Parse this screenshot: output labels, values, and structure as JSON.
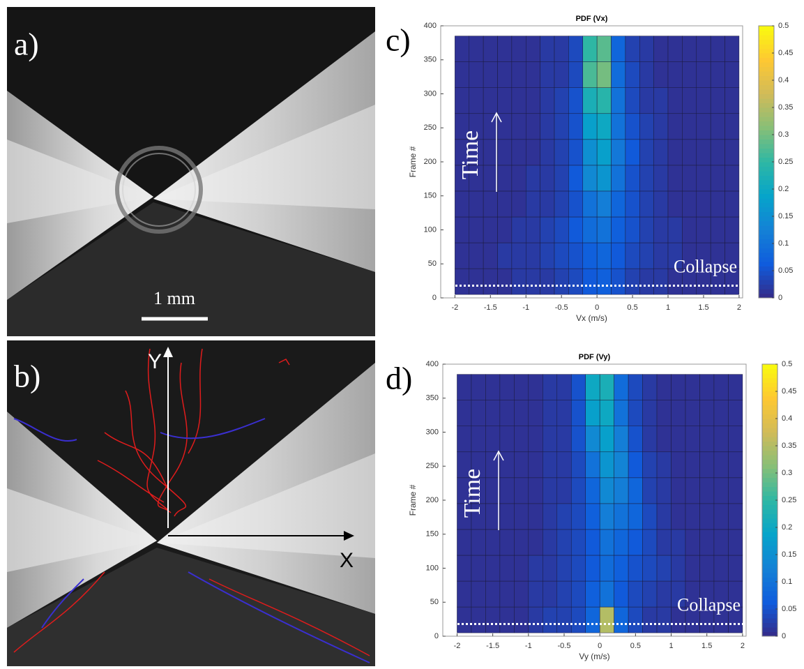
{
  "panels": {
    "a": {
      "label": "a)",
      "scale_bar": "1 mm"
    },
    "b": {
      "label": "b)",
      "y_axis": "Y",
      "x_axis": "X"
    }
  },
  "chart_data": [
    {
      "type": "heatmap",
      "panel_label": "c)",
      "title": "PDF (Vx)",
      "xlabel": "Vx (m/s)",
      "ylabel": "Frame #",
      "time_label": "Time",
      "collapse_label": "Collapse",
      "collapse_frame": 18,
      "xlim": [
        -2.2,
        2.05
      ],
      "xticks": [
        -2,
        -1.5,
        -1,
        -0.5,
        0,
        0.5,
        1,
        1.5,
        2
      ],
      "ylim": [
        0,
        400
      ],
      "yticks": [
        0,
        50,
        100,
        150,
        200,
        250,
        300,
        350,
        400
      ],
      "xbins": [
        -2,
        -1.8,
        -1.6,
        -1.4,
        -1.2,
        -1,
        -0.8,
        -0.6,
        -0.4,
        -0.2,
        0,
        0.2,
        0.4,
        0.6,
        0.8,
        1,
        1.2,
        1.4,
        1.6,
        1.8,
        2
      ],
      "ybins": [
        5,
        43,
        81,
        119,
        157,
        195,
        233,
        271,
        309,
        347,
        385
      ],
      "z": [
        [
          0.01,
          0.01,
          0.01,
          0.01,
          0.02,
          0.02,
          0.02,
          0.03,
          0.04,
          0.06,
          0.07,
          0.05,
          0.03,
          0.02,
          0.02,
          0.01,
          0.01,
          0.01,
          0.01,
          0.01
        ],
        [
          0.01,
          0.01,
          0.01,
          0.02,
          0.02,
          0.02,
          0.03,
          0.04,
          0.05,
          0.07,
          0.08,
          0.06,
          0.04,
          0.03,
          0.02,
          0.02,
          0.01,
          0.01,
          0.01,
          0.01
        ],
        [
          0.01,
          0.01,
          0.01,
          0.01,
          0.02,
          0.02,
          0.03,
          0.04,
          0.06,
          0.09,
          0.1,
          0.07,
          0.05,
          0.03,
          0.02,
          0.02,
          0.01,
          0.01,
          0.01,
          0.01
        ],
        [
          0.01,
          0.01,
          0.01,
          0.01,
          0.01,
          0.02,
          0.02,
          0.03,
          0.05,
          0.1,
          0.12,
          0.08,
          0.05,
          0.03,
          0.02,
          0.01,
          0.01,
          0.01,
          0.01,
          0.01
        ],
        [
          0.01,
          0.01,
          0.01,
          0.01,
          0.01,
          0.02,
          0.02,
          0.03,
          0.06,
          0.14,
          0.16,
          0.1,
          0.05,
          0.03,
          0.02,
          0.01,
          0.01,
          0.01,
          0.01,
          0.01
        ],
        [
          0.01,
          0.01,
          0.01,
          0.01,
          0.01,
          0.01,
          0.02,
          0.03,
          0.05,
          0.15,
          0.18,
          0.11,
          0.06,
          0.03,
          0.02,
          0.01,
          0.01,
          0.01,
          0.01,
          0.01
        ],
        [
          0.01,
          0.01,
          0.01,
          0.01,
          0.01,
          0.01,
          0.02,
          0.03,
          0.05,
          0.18,
          0.2,
          0.1,
          0.05,
          0.03,
          0.02,
          0.01,
          0.01,
          0.01,
          0.01,
          0.01
        ],
        [
          0.01,
          0.01,
          0.01,
          0.01,
          0.01,
          0.01,
          0.02,
          0.03,
          0.05,
          0.22,
          0.24,
          0.1,
          0.04,
          0.02,
          0.02,
          0.01,
          0.01,
          0.01,
          0.01,
          0.01
        ],
        [
          0.01,
          0.01,
          0.01,
          0.01,
          0.01,
          0.01,
          0.02,
          0.02,
          0.04,
          0.27,
          0.3,
          0.09,
          0.04,
          0.02,
          0.01,
          0.01,
          0.01,
          0.01,
          0.01,
          0.01
        ],
        [
          0.01,
          0.01,
          0.01,
          0.01,
          0.01,
          0.01,
          0.02,
          0.02,
          0.04,
          0.25,
          0.28,
          0.08,
          0.03,
          0.02,
          0.01,
          0.01,
          0.01,
          0.01,
          0.01,
          0.01
        ]
      ],
      "clim": [
        0,
        0.5
      ],
      "cticks": [
        0,
        0.05,
        0.1,
        0.15,
        0.2,
        0.25,
        0.3,
        0.35,
        0.4,
        0.45,
        0.5
      ],
      "colors": [
        "#352a87",
        "#0f5cdd",
        "#1481d6",
        "#06a4ca",
        "#2eb7a4",
        "#87bf77",
        "#d1bb59",
        "#fec832",
        "#f9fb0e"
      ]
    },
    {
      "type": "heatmap",
      "panel_label": "d)",
      "title": "PDF (Vy)",
      "xlabel": "Vy (m/s)",
      "ylabel": "Frame #",
      "time_label": "Time",
      "collapse_label": "Collapse",
      "collapse_frame": 18,
      "xlim": [
        -2.2,
        2.05
      ],
      "xticks": [
        -2,
        -1.5,
        -1,
        -0.5,
        0,
        0.5,
        1,
        1.5,
        2
      ],
      "ylim": [
        0,
        400
      ],
      "yticks": [
        0,
        50,
        100,
        150,
        200,
        250,
        300,
        350,
        400
      ],
      "xbins": [
        -2,
        -1.8,
        -1.6,
        -1.4,
        -1.2,
        -1,
        -0.8,
        -0.6,
        -0.4,
        -0.2,
        0,
        0.2,
        0.4,
        0.6,
        0.8,
        1,
        1.2,
        1.4,
        1.6,
        1.8,
        2
      ],
      "ybins": [
        5,
        43,
        81,
        119,
        157,
        195,
        233,
        271,
        309,
        347,
        385
      ],
      "z": [
        [
          0.01,
          0.01,
          0.01,
          0.01,
          0.01,
          0.02,
          0.03,
          0.03,
          0.04,
          0.08,
          0.35,
          0.08,
          0.04,
          0.02,
          0.02,
          0.01,
          0.01,
          0.01,
          0.01,
          0.01
        ],
        [
          0.01,
          0.01,
          0.01,
          0.01,
          0.01,
          0.02,
          0.02,
          0.03,
          0.04,
          0.07,
          0.1,
          0.06,
          0.04,
          0.03,
          0.02,
          0.02,
          0.01,
          0.01,
          0.01,
          0.01
        ],
        [
          0.01,
          0.01,
          0.01,
          0.01,
          0.01,
          0.02,
          0.02,
          0.03,
          0.04,
          0.06,
          0.09,
          0.07,
          0.05,
          0.04,
          0.03,
          0.02,
          0.01,
          0.01,
          0.01,
          0.01
        ],
        [
          0.01,
          0.01,
          0.01,
          0.01,
          0.01,
          0.01,
          0.02,
          0.03,
          0.04,
          0.06,
          0.1,
          0.08,
          0.06,
          0.04,
          0.02,
          0.02,
          0.01,
          0.01,
          0.01,
          0.01
        ],
        [
          0.01,
          0.01,
          0.01,
          0.01,
          0.01,
          0.01,
          0.02,
          0.03,
          0.04,
          0.07,
          0.12,
          0.1,
          0.08,
          0.04,
          0.02,
          0.01,
          0.01,
          0.01,
          0.01,
          0.01
        ],
        [
          0.01,
          0.01,
          0.01,
          0.01,
          0.01,
          0.01,
          0.02,
          0.02,
          0.04,
          0.08,
          0.14,
          0.12,
          0.08,
          0.03,
          0.02,
          0.01,
          0.01,
          0.01,
          0.01,
          0.01
        ],
        [
          0.01,
          0.01,
          0.01,
          0.01,
          0.01,
          0.01,
          0.02,
          0.02,
          0.04,
          0.1,
          0.16,
          0.13,
          0.06,
          0.03,
          0.02,
          0.01,
          0.01,
          0.01,
          0.01,
          0.01
        ],
        [
          0.01,
          0.01,
          0.01,
          0.01,
          0.01,
          0.01,
          0.02,
          0.02,
          0.05,
          0.14,
          0.18,
          0.12,
          0.05,
          0.02,
          0.01,
          0.01,
          0.01,
          0.01,
          0.01,
          0.01
        ],
        [
          0.01,
          0.01,
          0.01,
          0.01,
          0.01,
          0.01,
          0.02,
          0.02,
          0.05,
          0.18,
          0.2,
          0.1,
          0.04,
          0.02,
          0.01,
          0.01,
          0.01,
          0.01,
          0.01,
          0.01
        ],
        [
          0.01,
          0.01,
          0.01,
          0.01,
          0.01,
          0.01,
          0.02,
          0.02,
          0.05,
          0.2,
          0.22,
          0.09,
          0.04,
          0.02,
          0.01,
          0.01,
          0.01,
          0.01,
          0.01,
          0.01
        ]
      ],
      "clim": [
        0,
        0.5
      ],
      "cticks": [
        0,
        0.05,
        0.1,
        0.15,
        0.2,
        0.25,
        0.3,
        0.35,
        0.4,
        0.45,
        0.5
      ],
      "colors": [
        "#352a87",
        "#0f5cdd",
        "#1481d6",
        "#06a4ca",
        "#2eb7a4",
        "#87bf77",
        "#d1bb59",
        "#fec832",
        "#f9fb0e"
      ]
    }
  ]
}
